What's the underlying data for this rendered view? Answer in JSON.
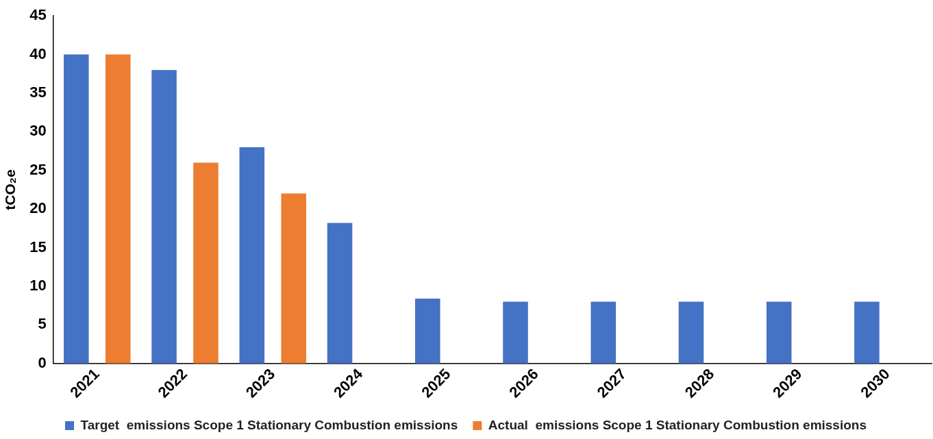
{
  "chart_data": {
    "type": "bar",
    "ylabel": "tCO₂e",
    "categories": [
      "2021",
      "2022",
      "2023",
      "2024",
      "2025",
      "2026",
      "2027",
      "2028",
      "2029",
      "2030"
    ],
    "series": [
      {
        "name": "Target  emissions Scope 1 Stationary Combustion emissions",
        "color": "#4472c4",
        "values": [
          40,
          38,
          28,
          18.2,
          8.4,
          8,
          8,
          8,
          8,
          8
        ]
      },
      {
        "name": "Actual  emissions Scope 1 Stationary Combustion emissions",
        "color": "#ed7d31",
        "values": [
          40,
          26,
          22,
          null,
          null,
          null,
          null,
          null,
          null,
          null
        ]
      }
    ],
    "ylim": [
      0,
      45
    ],
    "yticks": [
      0,
      5,
      10,
      15,
      20,
      25,
      30,
      35,
      40,
      45
    ],
    "grid": false,
    "legend": "bottom"
  }
}
